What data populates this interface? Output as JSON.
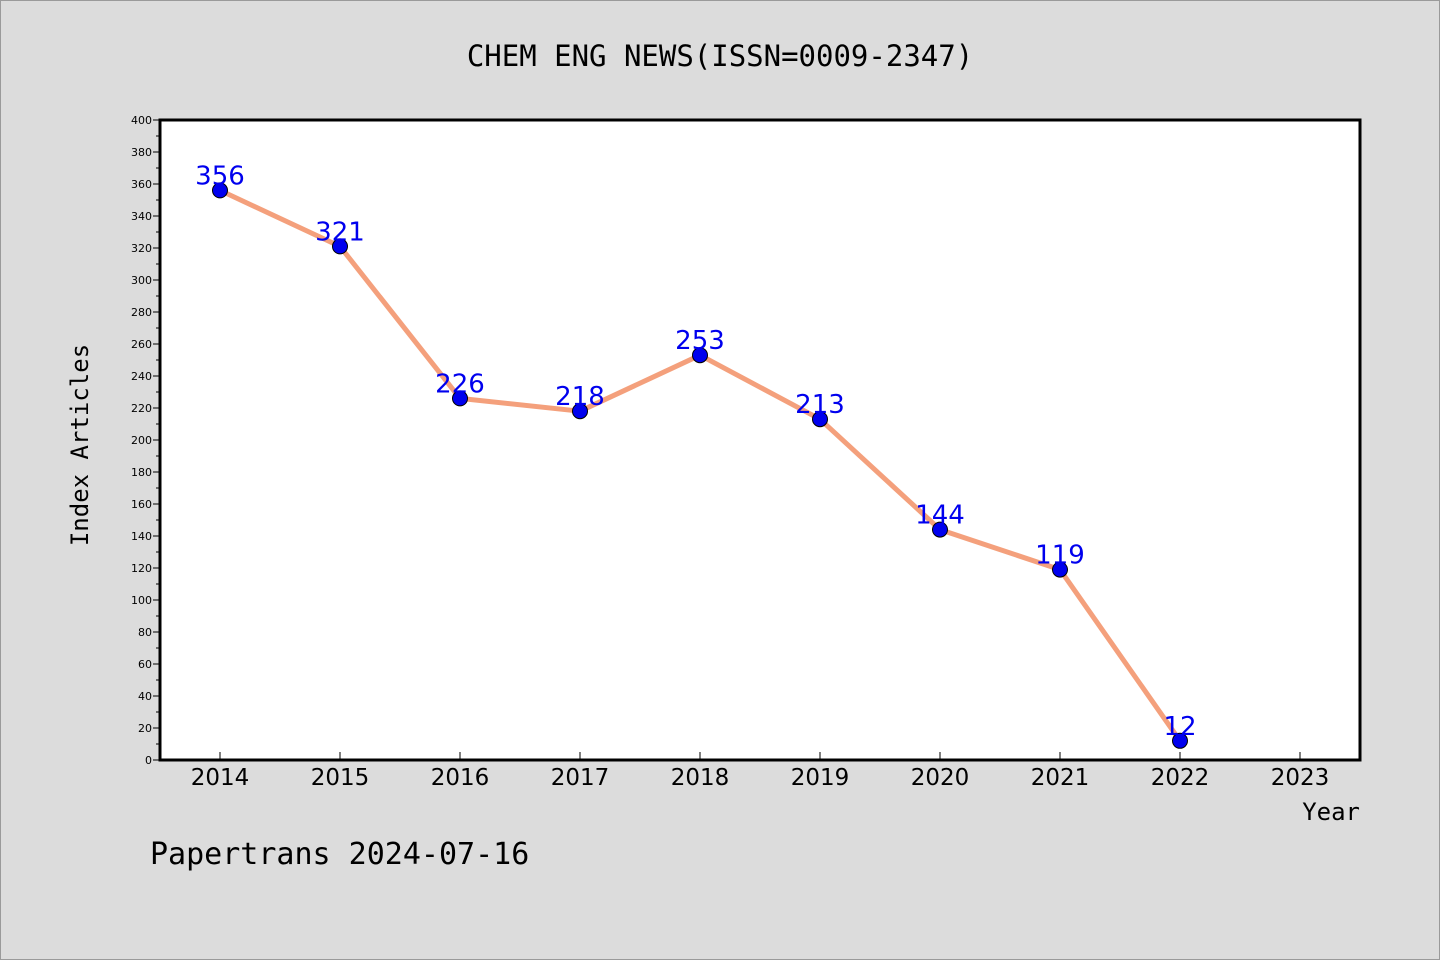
{
  "chart_data": {
    "type": "line",
    "title": "CHEM ENG NEWS(ISSN=0009-2347)",
    "xlabel": "Year",
    "ylabel": "Index Articles",
    "categories": [
      "2014",
      "2015",
      "2016",
      "2017",
      "2018",
      "2019",
      "2020",
      "2021",
      "2022",
      "2023"
    ],
    "series": [
      {
        "values": [
          356,
          321,
          226,
          218,
          253,
          213,
          144,
          119,
          12,
          null
        ]
      }
    ],
    "data_labels": [
      "356",
      "321",
      "226",
      "218",
      "253",
      "213",
      "144",
      "119",
      "12"
    ],
    "ylim": [
      0,
      400
    ],
    "yticks": [
      0,
      20,
      40,
      60,
      80,
      100,
      120,
      140,
      160,
      180,
      200,
      220,
      240,
      260,
      280,
      300,
      320,
      340,
      360,
      380,
      400
    ],
    "grid": false,
    "colors": {
      "line": "#f4a07c",
      "marker": "#0000ee",
      "label": "#0000ee"
    }
  },
  "footer": {
    "text": "Papertrans 2024-07-16"
  }
}
